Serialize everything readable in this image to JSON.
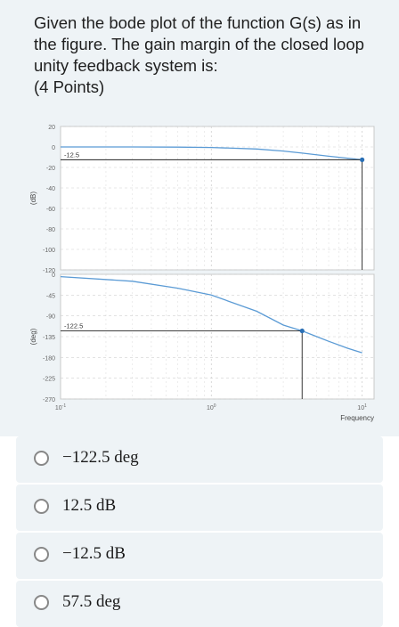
{
  "question": {
    "text": "Given the bode plot of the function G(s) as in the figure. The gain margin of the closed loop unity feedback system is:",
    "points": "(4 Points)"
  },
  "chart_data": [
    {
      "type": "line",
      "ylabel": "(dB)",
      "xscale": "log",
      "xlim": [
        0.1,
        12
      ],
      "ylim": [
        -120,
        20
      ],
      "yticks": [
        "20",
        "0",
        "-20",
        "-40",
        "-60",
        "-80",
        "-100",
        "-120"
      ],
      "grid": true,
      "series": [
        {
          "x": [
            0.1,
            0.3,
            0.6,
            1,
            2,
            3,
            4,
            6,
            8,
            10
          ],
          "y": [
            0,
            0,
            -0.2,
            -0.5,
            -2,
            -4,
            -6,
            -9,
            -11,
            -12.5
          ]
        }
      ],
      "annotation": {
        "label": "-12.5",
        "x": 10,
        "y": -12.5
      }
    },
    {
      "type": "line",
      "ylabel": "(deg)",
      "xlabel": "Frequency",
      "xscale": "log",
      "xlim": [
        0.1,
        12
      ],
      "ylim": [
        -270,
        0
      ],
      "yticks": [
        "0",
        "-45",
        "-90",
        "-135",
        "-180",
        "-225",
        "-270"
      ],
      "xticks": [
        "10-1",
        "100",
        "101"
      ],
      "grid": true,
      "series": [
        {
          "x": [
            0.1,
            0.3,
            0.6,
            1,
            2,
            3,
            4,
            6,
            8,
            10
          ],
          "y": [
            -5,
            -15,
            -30,
            -45,
            -80,
            -110,
            -122.5,
            -145,
            -160,
            -170
          ]
        }
      ],
      "annotation": {
        "label": "-122.5",
        "x": 4,
        "y": -122.5
      }
    }
  ],
  "options": [
    {
      "label": "−122.5 deg"
    },
    {
      "label": "12.5 dB"
    },
    {
      "label": "−12.5 dB"
    },
    {
      "label": "57.5 deg"
    }
  ],
  "colors": {
    "curve": "#5b9bd5",
    "marker": "#2a6fb5",
    "grid": "#d0d0d0"
  }
}
